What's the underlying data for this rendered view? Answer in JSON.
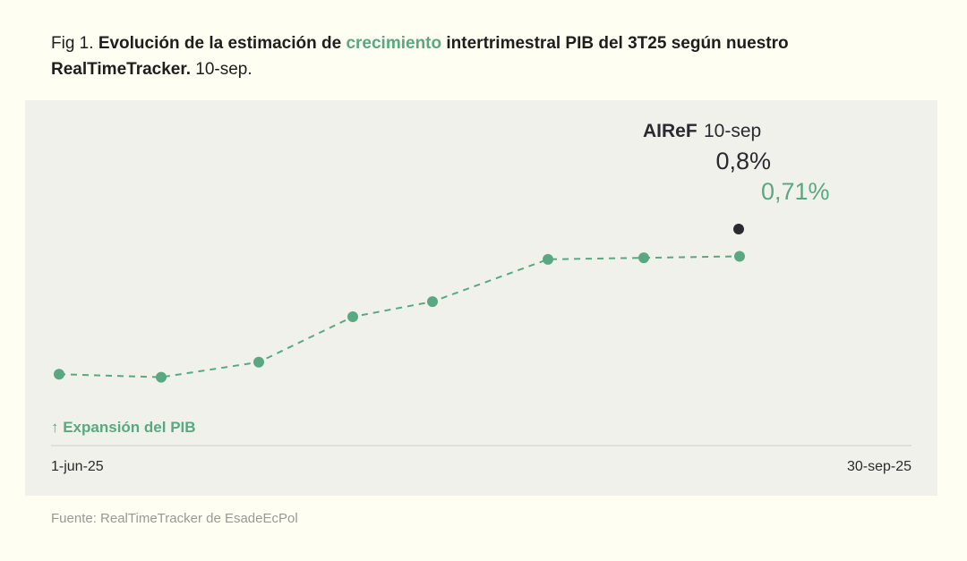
{
  "title": {
    "prefix": "Fig 1.",
    "part1": "Evolución de la estimación de",
    "highlight": "crecimiento",
    "part2": "intertrimestral PIB del 3T25 según nuestro",
    "part3": "RealTimeTracker.",
    "date": "10-sep."
  },
  "colors": {
    "accent": "#5aa882",
    "reference": "#2a2a30",
    "grid": "#cfcfc8"
  },
  "chart_data": {
    "type": "line",
    "series": [
      {
        "name": "RealTimeTracker",
        "values": [
          0.32,
          0.31,
          0.36,
          0.51,
          0.56,
          0.7,
          0.705,
          0.71
        ]
      }
    ],
    "current_label": "0,71%",
    "reference": {
      "name": "AIReF",
      "date": "10-sep",
      "value": 0.8,
      "label": "0,8%"
    },
    "x_tick_labels": [
      "1-jun-25",
      "30-sep-25"
    ],
    "annotation": "↑ Expansión del PIB",
    "ylim": [
      0.22,
      0.96
    ],
    "grid": false
  },
  "source": "Fuente: RealTimeTracker de EsadeEcPol"
}
